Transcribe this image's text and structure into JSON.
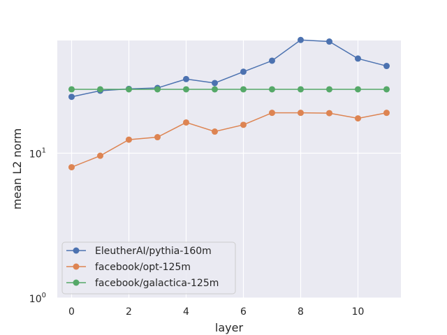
{
  "chart_data": {
    "type": "line",
    "title": "",
    "xlabel": "layer",
    "ylabel": "mean L2 norm",
    "yscale": "log",
    "x": [
      0,
      1,
      2,
      3,
      4,
      5,
      6,
      7,
      8,
      9,
      10,
      11
    ],
    "xlim": [
      -0.5,
      11.5
    ],
    "ylim": [
      1,
      60
    ],
    "xticks": [
      0,
      2,
      4,
      6,
      8,
      10
    ],
    "yticks": [
      {
        "value": 1,
        "base": "10",
        "exp": "0"
      },
      {
        "value": 10,
        "base": "10",
        "exp": "1"
      }
    ],
    "grid": true,
    "legend_position": "lower-left",
    "series": [
      {
        "name": "EleutherAI/pythia-160m",
        "color": "#4c72b0",
        "values": [
          24.5,
          27.0,
          27.8,
          28.2,
          32.5,
          30.5,
          36.5,
          43.5,
          60.5,
          59.0,
          45.0,
          40.0
        ]
      },
      {
        "name": "facebook/opt-125m",
        "color": "#dd8452",
        "values": [
          8.0,
          9.6,
          12.4,
          12.9,
          16.3,
          14.1,
          15.7,
          19.0,
          19.0,
          18.9,
          17.4,
          19.0
        ]
      },
      {
        "name": "facebook/galactica-125m",
        "color": "#55a868",
        "values": [
          27.6,
          27.6,
          27.6,
          27.6,
          27.6,
          27.6,
          27.6,
          27.6,
          27.6,
          27.6,
          27.6,
          27.6
        ]
      }
    ]
  }
}
